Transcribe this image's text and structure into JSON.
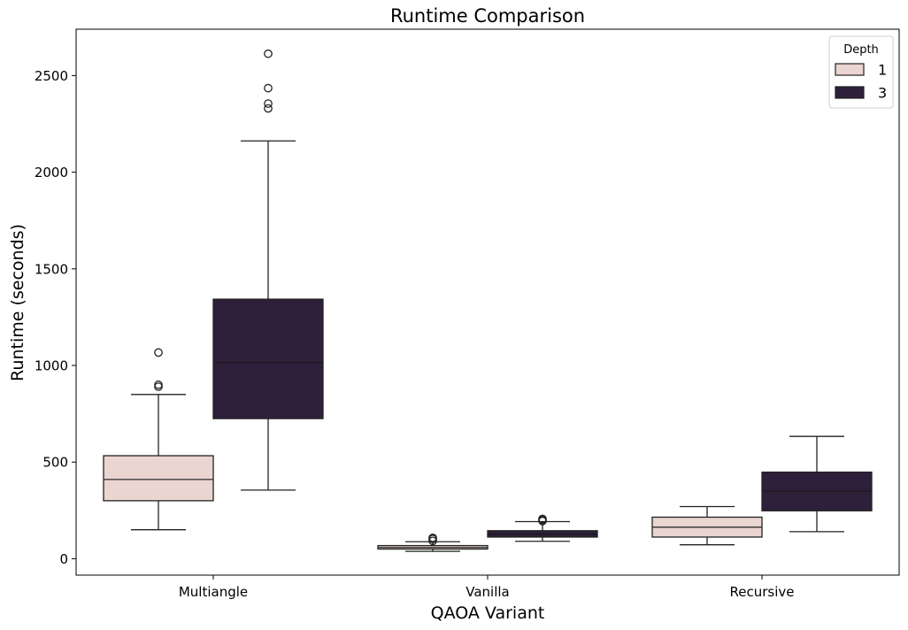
{
  "chart_data": {
    "type": "box",
    "title": "Runtime Comparison",
    "xlabel": "QAOA Variant",
    "ylabel": "Runtime (seconds)",
    "categories": [
      "Multiangle",
      "Vanilla",
      "Recursive"
    ],
    "ylim": [
      -85,
      2740
    ],
    "yticks": [
      0,
      500,
      1000,
      1500,
      2000,
      2500
    ],
    "grid": false,
    "legend": {
      "title": "Depth",
      "placement": "top-right"
    },
    "series": [
      {
        "name": "1",
        "color": "#ebd5d0",
        "boxes": [
          {
            "whisker_low": 150,
            "q1": 300,
            "median": 410,
            "q3": 533,
            "whisker_high": 850,
            "outliers": [
              1067,
              900,
              890
            ]
          },
          {
            "whisker_low": 38,
            "q1": 50,
            "median": 58,
            "q3": 68,
            "whisker_high": 88,
            "outliers": [
              92,
              102,
              108
            ]
          },
          {
            "whisker_low": 72,
            "q1": 112,
            "median": 163,
            "q3": 215,
            "whisker_high": 270,
            "outliers": []
          }
        ]
      },
      {
        "name": "3",
        "color": "#2e1f3b",
        "boxes": [
          {
            "whisker_low": 355,
            "q1": 725,
            "median": 1015,
            "q3": 1343,
            "whisker_high": 2162,
            "outliers": [
              2613,
              2435,
              2355,
              2330
            ]
          },
          {
            "whisker_low": 90,
            "q1": 112,
            "median": 128,
            "q3": 145,
            "whisker_high": 192,
            "outliers": [
              195,
              200,
              206
            ]
          },
          {
            "whisker_low": 140,
            "q1": 248,
            "median": 350,
            "q3": 448,
            "whisker_high": 633,
            "outliers": []
          }
        ]
      }
    ]
  }
}
